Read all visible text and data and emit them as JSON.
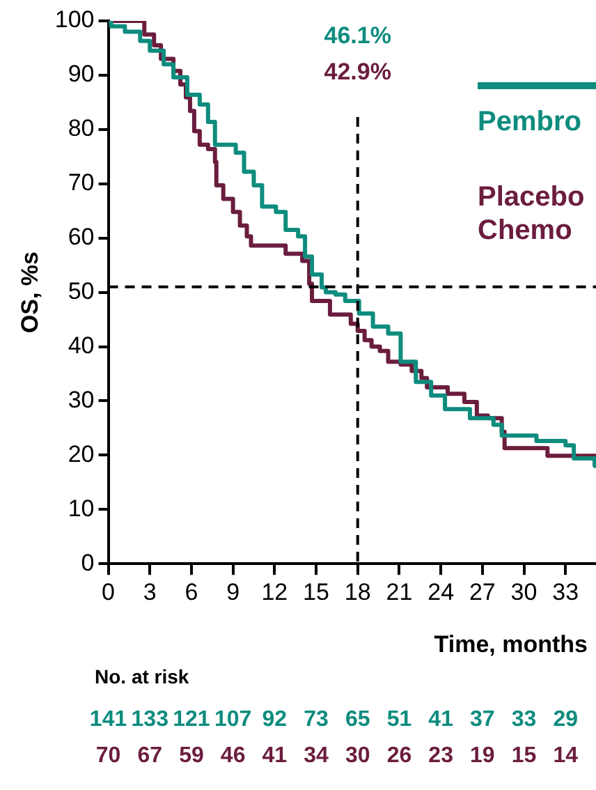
{
  "chart_data": {
    "type": "step",
    "ylabel": "OS, %s",
    "xlabel": "Time, months",
    "xlim": [
      0,
      35.2
    ],
    "xticks": [
      0,
      3,
      6,
      9,
      12,
      15,
      18,
      21,
      24,
      27,
      30,
      33
    ],
    "ylim": [
      0,
      100
    ],
    "yticks": [
      0,
      10,
      20,
      30,
      40,
      50,
      60,
      70,
      80,
      90,
      100
    ],
    "grid": false,
    "legend": "top right",
    "line_style": "solid",
    "marker": "none",
    "series": [
      {
        "name": "Pembro",
        "color": "#0e8c7e",
        "x": [
          0,
          0.2,
          1.2,
          2.3,
          3.0,
          4.0,
          4.7,
          5.7,
          6.6,
          7.2,
          7.7,
          8.5,
          9.2,
          9.8,
          10.5,
          11.1,
          12.1,
          12.8,
          13.7,
          14.2,
          14.7,
          15.4,
          15.7,
          16.4,
          17.1,
          18.1,
          19.1,
          20.2,
          21.1,
          22.2,
          23.3,
          24.3,
          26.1,
          27.8,
          28.4,
          30.9,
          33.0,
          33.6,
          35.1,
          35.2
        ],
        "values": [
          100,
          99,
          98,
          96.3,
          94.5,
          92,
          89.6,
          86.4,
          84.6,
          81.4,
          77.2,
          77.2,
          75.7,
          72.2,
          69.7,
          65.8,
          64.8,
          61.5,
          60.3,
          56.6,
          53.3,
          50.9,
          50,
          49.6,
          48.4,
          46.1,
          43.7,
          42.4,
          37.2,
          33.5,
          31,
          28.5,
          26.8,
          25.6,
          23.6,
          22.6,
          21.8,
          19.4,
          18.1,
          17.6
        ]
      },
      {
        "name": "Placebo Chemo",
        "color": "#6b1d3e",
        "x": [
          0,
          2.1,
          2.6,
          3.3,
          3.8,
          4.7,
          5.2,
          5.6,
          5.9,
          6.2,
          6.6,
          7.2,
          7.7,
          7.8,
          8.3,
          9.0,
          9.5,
          10.0,
          10.3,
          12.8,
          14.0,
          14.5,
          14.7,
          16.0,
          17.5,
          18.0,
          18.5,
          19.0,
          19.6,
          20.2,
          21.1,
          21.9,
          22.6,
          23.0,
          24.5,
          25.7,
          26.6,
          27.4,
          28.4,
          28.6,
          31.7,
          35.2
        ],
        "values": [
          100,
          100,
          97.5,
          95.5,
          93,
          90.8,
          88.3,
          85.9,
          83.4,
          79.7,
          77.2,
          76.4,
          74,
          69.7,
          67.2,
          64.8,
          62.3,
          60.3,
          58.6,
          57.1,
          55.8,
          51.6,
          48.4,
          45.9,
          44.2,
          42.9,
          41.2,
          40,
          39.2,
          37.2,
          36.7,
          35.5,
          34.2,
          32.5,
          31.3,
          29.8,
          27.3,
          26.8,
          24.3,
          21.3,
          19.9,
          19.9
        ]
      }
    ],
    "ref_lines": [
      {
        "axis": "x",
        "value": 18,
        "line_style": "dashed",
        "color": "#000000"
      },
      {
        "axis": "y",
        "value": 51,
        "line_style": "dashed",
        "color": "#000000"
      }
    ],
    "annotations": [
      "46.1%",
      "42.9%",
      "No. at risk",
      "141 133 121 107 92 73 65 51 41 37 33 29",
      "70 67 59 46 41 34 30 26 23 19 15 14"
    ]
  }
}
